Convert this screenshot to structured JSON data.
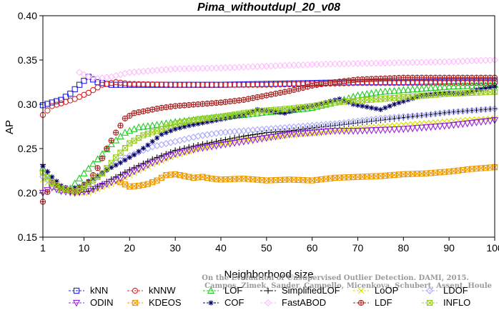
{
  "chart_data": {
    "type": "line",
    "title": "Pima_withoutdupl_20_v08",
    "xlabel": "Neighborhood size",
    "ylabel": "AP",
    "xlim": [
      1,
      100
    ],
    "ylim": [
      0.15,
      0.4
    ],
    "xticks": [
      "1",
      "10",
      "20",
      "30",
      "40",
      "50",
      "60",
      "70",
      "80",
      "90",
      "100"
    ],
    "yticks": [
      "0.15",
      "0.20",
      "0.25",
      "0.30",
      "0.35",
      "0.40"
    ],
    "grid": false,
    "legend_position": "bottom",
    "series": [
      {
        "name": "kNN",
        "color": "#2222dd",
        "marker": "square",
        "points": [
          [
            1,
            0.299
          ],
          [
            3,
            0.302
          ],
          [
            5,
            0.305
          ],
          [
            7,
            0.312
          ],
          [
            9,
            0.322
          ],
          [
            11,
            0.331
          ],
          [
            13,
            0.325
          ],
          [
            16,
            0.322
          ],
          [
            20,
            0.322
          ],
          [
            30,
            0.322
          ],
          [
            40,
            0.322
          ],
          [
            50,
            0.323
          ],
          [
            60,
            0.324
          ],
          [
            70,
            0.325
          ],
          [
            80,
            0.325
          ],
          [
            90,
            0.326
          ],
          [
            100,
            0.326
          ]
        ]
      },
      {
        "name": "kNNW",
        "color": "#dd2222",
        "marker": "circle",
        "points": [
          [
            1,
            0.288
          ],
          [
            3,
            0.298
          ],
          [
            5,
            0.301
          ],
          [
            8,
            0.306
          ],
          [
            11,
            0.313
          ],
          [
            14,
            0.322
          ],
          [
            17,
            0.325
          ],
          [
            20,
            0.323
          ],
          [
            30,
            0.322
          ],
          [
            40,
            0.322
          ],
          [
            50,
            0.322
          ],
          [
            60,
            0.323
          ],
          [
            70,
            0.324
          ],
          [
            80,
            0.324
          ],
          [
            90,
            0.324
          ],
          [
            100,
            0.324
          ]
        ]
      },
      {
        "name": "LOF",
        "color": "#22cc22",
        "marker": "triangle",
        "points": [
          [
            1,
            0.228
          ],
          [
            3,
            0.21
          ],
          [
            5,
            0.203
          ],
          [
            7,
            0.205
          ],
          [
            10,
            0.222
          ],
          [
            13,
            0.238
          ],
          [
            16,
            0.255
          ],
          [
            19,
            0.268
          ],
          [
            22,
            0.274
          ],
          [
            25,
            0.276
          ],
          [
            30,
            0.28
          ],
          [
            35,
            0.283
          ],
          [
            40,
            0.286
          ],
          [
            45,
            0.288
          ],
          [
            50,
            0.291
          ],
          [
            55,
            0.293
          ],
          [
            60,
            0.296
          ],
          [
            65,
            0.302
          ],
          [
            70,
            0.31
          ],
          [
            75,
            0.314
          ],
          [
            80,
            0.316
          ],
          [
            85,
            0.318
          ],
          [
            90,
            0.32
          ],
          [
            95,
            0.321
          ],
          [
            100,
            0.322
          ]
        ]
      },
      {
        "name": "SimplifiedLOF",
        "color": "#000000",
        "marker": "plus",
        "points": [
          [
            1,
            0.232
          ],
          [
            3,
            0.215
          ],
          [
            5,
            0.205
          ],
          [
            8,
            0.2
          ],
          [
            11,
            0.202
          ],
          [
            14,
            0.21
          ],
          [
            17,
            0.218
          ],
          [
            20,
            0.226
          ],
          [
            25,
            0.238
          ],
          [
            30,
            0.248
          ],
          [
            35,
            0.254
          ],
          [
            40,
            0.259
          ],
          [
            45,
            0.264
          ],
          [
            50,
            0.268
          ],
          [
            55,
            0.27
          ],
          [
            60,
            0.273
          ],
          [
            65,
            0.276
          ],
          [
            70,
            0.279
          ],
          [
            75,
            0.282
          ],
          [
            80,
            0.285
          ],
          [
            85,
            0.288
          ],
          [
            90,
            0.291
          ],
          [
            95,
            0.293
          ],
          [
            100,
            0.295
          ]
        ]
      },
      {
        "name": "LoOP",
        "color": "#dddd00",
        "marker": "x",
        "points": [
          [
            1,
            0.215
          ],
          [
            3,
            0.208
          ],
          [
            5,
            0.204
          ],
          [
            8,
            0.2
          ],
          [
            11,
            0.2
          ],
          [
            14,
            0.206
          ],
          [
            17,
            0.212
          ],
          [
            20,
            0.22
          ],
          [
            25,
            0.232
          ],
          [
            30,
            0.242
          ],
          [
            35,
            0.25
          ],
          [
            40,
            0.255
          ],
          [
            45,
            0.26
          ],
          [
            50,
            0.262
          ],
          [
            55,
            0.265
          ],
          [
            60,
            0.267
          ],
          [
            65,
            0.27
          ],
          [
            70,
            0.273
          ],
          [
            75,
            0.275
          ],
          [
            80,
            0.277
          ],
          [
            85,
            0.279
          ],
          [
            90,
            0.281
          ],
          [
            95,
            0.283
          ],
          [
            100,
            0.284
          ]
        ]
      },
      {
        "name": "LDOF",
        "color": "#aaaaff",
        "marker": "diamond",
        "points": [
          [
            1,
            0.218
          ],
          [
            3,
            0.212
          ],
          [
            5,
            0.206
          ],
          [
            8,
            0.203
          ],
          [
            11,
            0.21
          ],
          [
            14,
            0.222
          ],
          [
            17,
            0.234
          ],
          [
            20,
            0.242
          ],
          [
            25,
            0.252
          ],
          [
            30,
            0.258
          ],
          [
            35,
            0.264
          ],
          [
            40,
            0.268
          ],
          [
            45,
            0.27
          ],
          [
            50,
            0.272
          ],
          [
            55,
            0.274
          ],
          [
            60,
            0.276
          ],
          [
            65,
            0.278
          ],
          [
            70,
            0.281
          ],
          [
            75,
            0.284
          ],
          [
            80,
            0.286
          ],
          [
            85,
            0.288
          ],
          [
            90,
            0.291
          ],
          [
            95,
            0.293
          ],
          [
            100,
            0.295
          ]
        ]
      },
      {
        "name": "ODIN",
        "color": "#9922dd",
        "marker": "triangle-down",
        "points": [
          [
            1,
            0.2
          ],
          [
            3,
            0.206
          ],
          [
            5,
            0.202
          ],
          [
            8,
            0.2
          ],
          [
            11,
            0.202
          ],
          [
            14,
            0.208
          ],
          [
            17,
            0.214
          ],
          [
            20,
            0.222
          ],
          [
            25,
            0.234
          ],
          [
            30,
            0.244
          ],
          [
            35,
            0.25
          ],
          [
            40,
            0.254
          ],
          [
            45,
            0.258
          ],
          [
            50,
            0.262
          ],
          [
            55,
            0.266
          ],
          [
            60,
            0.268
          ],
          [
            65,
            0.27
          ],
          [
            70,
            0.27
          ],
          [
            75,
            0.271
          ],
          [
            80,
            0.272
          ],
          [
            85,
            0.274
          ],
          [
            90,
            0.276
          ],
          [
            95,
            0.279
          ],
          [
            100,
            0.282
          ]
        ]
      },
      {
        "name": "KDEOS",
        "color": "#ee9900",
        "marker": "square-x",
        "points": [
          [
            18,
            0.212
          ],
          [
            20,
            0.207
          ],
          [
            22,
            0.208
          ],
          [
            24,
            0.21
          ],
          [
            26,
            0.214
          ],
          [
            28,
            0.22
          ],
          [
            30,
            0.221
          ],
          [
            32,
            0.219
          ],
          [
            34,
            0.217
          ],
          [
            36,
            0.218
          ],
          [
            38,
            0.216
          ],
          [
            40,
            0.215
          ],
          [
            45,
            0.216
          ],
          [
            50,
            0.214
          ],
          [
            55,
            0.215
          ],
          [
            60,
            0.214
          ],
          [
            65,
            0.217
          ],
          [
            70,
            0.218
          ],
          [
            75,
            0.219
          ],
          [
            80,
            0.221
          ],
          [
            85,
            0.222
          ],
          [
            90,
            0.224
          ],
          [
            95,
            0.227
          ],
          [
            100,
            0.229
          ]
        ]
      },
      {
        "name": "COF",
        "color": "#000066",
        "marker": "star",
        "points": [
          [
            1,
            0.23
          ],
          [
            3,
            0.218
          ],
          [
            5,
            0.208
          ],
          [
            7,
            0.204
          ],
          [
            9,
            0.207
          ],
          [
            12,
            0.216
          ],
          [
            15,
            0.226
          ],
          [
            18,
            0.234
          ],
          [
            21,
            0.243
          ],
          [
            24,
            0.254
          ],
          [
            27,
            0.266
          ],
          [
            30,
            0.272
          ],
          [
            33,
            0.276
          ],
          [
            36,
            0.279
          ],
          [
            40,
            0.283
          ],
          [
            45,
            0.288
          ],
          [
            48,
            0.294
          ],
          [
            51,
            0.292
          ],
          [
            54,
            0.29
          ],
          [
            57,
            0.295
          ],
          [
            60,
            0.298
          ],
          [
            63,
            0.302
          ],
          [
            66,
            0.306
          ],
          [
            69,
            0.3
          ],
          [
            72,
            0.297
          ],
          [
            75,
            0.294
          ],
          [
            78,
            0.3
          ],
          [
            81,
            0.305
          ],
          [
            84,
            0.31
          ],
          [
            87,
            0.312
          ],
          [
            90,
            0.313
          ],
          [
            93,
            0.312
          ],
          [
            96,
            0.316
          ],
          [
            100,
            0.32
          ]
        ]
      },
      {
        "name": "FastABOD",
        "color": "#ffbbff",
        "marker": "diamond",
        "points": [
          [
            9,
            0.336
          ],
          [
            11,
            0.331
          ],
          [
            13,
            0.329
          ],
          [
            16,
            0.331
          ],
          [
            20,
            0.336
          ],
          [
            25,
            0.338
          ],
          [
            30,
            0.34
          ],
          [
            40,
            0.341
          ],
          [
            50,
            0.343
          ],
          [
            60,
            0.345
          ],
          [
            70,
            0.346
          ],
          [
            80,
            0.347
          ],
          [
            90,
            0.348
          ],
          [
            100,
            0.35
          ]
        ]
      },
      {
        "name": "LDF",
        "color": "#aa2222",
        "marker": "circle-plus",
        "points": [
          [
            1,
            0.19
          ],
          [
            3,
            0.212
          ],
          [
            5,
            0.205
          ],
          [
            8,
            0.202
          ],
          [
            11,
            0.212
          ],
          [
            13,
            0.228
          ],
          [
            15,
            0.25
          ],
          [
            17,
            0.268
          ],
          [
            19,
            0.284
          ],
          [
            21,
            0.29
          ],
          [
            24,
            0.293
          ],
          [
            27,
            0.296
          ],
          [
            30,
            0.298
          ],
          [
            35,
            0.3
          ],
          [
            40,
            0.302
          ],
          [
            45,
            0.305
          ],
          [
            50,
            0.31
          ],
          [
            55,
            0.315
          ],
          [
            60,
            0.321
          ],
          [
            65,
            0.325
          ],
          [
            70,
            0.328
          ],
          [
            75,
            0.329
          ],
          [
            80,
            0.33
          ],
          [
            90,
            0.33
          ],
          [
            100,
            0.33
          ]
        ]
      },
      {
        "name": "INFLO",
        "color": "#99cc22",
        "marker": "square-x",
        "points": [
          [
            1,
            0.223
          ],
          [
            3,
            0.212
          ],
          [
            5,
            0.205
          ],
          [
            8,
            0.202
          ],
          [
            11,
            0.21
          ],
          [
            14,
            0.222
          ],
          [
            17,
            0.24
          ],
          [
            20,
            0.256
          ],
          [
            23,
            0.265
          ],
          [
            26,
            0.27
          ],
          [
            30,
            0.278
          ],
          [
            35,
            0.283
          ],
          [
            40,
            0.286
          ],
          [
            45,
            0.29
          ],
          [
            50,
            0.293
          ],
          [
            55,
            0.295
          ],
          [
            60,
            0.298
          ],
          [
            65,
            0.302
          ],
          [
            70,
            0.304
          ],
          [
            75,
            0.306
          ],
          [
            80,
            0.308
          ],
          [
            85,
            0.31
          ],
          [
            90,
            0.312
          ],
          [
            95,
            0.313
          ],
          [
            100,
            0.314
          ]
        ]
      }
    ],
    "legend_rows": [
      [
        "kNN",
        "kNNW",
        "LOF",
        "SimplifiedLOF",
        "LoOP",
        "LDOF"
      ],
      [
        "ODIN",
        "KDEOS",
        "COF",
        "FastABOD",
        "LDF",
        "INFLO"
      ]
    ],
    "watermark": [
      "Campos, Zimek, Sander, Campello, Micenkova, Schubert, Assent, Houle",
      "On the Evaluation of Unsupervised Outlier Detection. DAMI, 2015."
    ]
  }
}
